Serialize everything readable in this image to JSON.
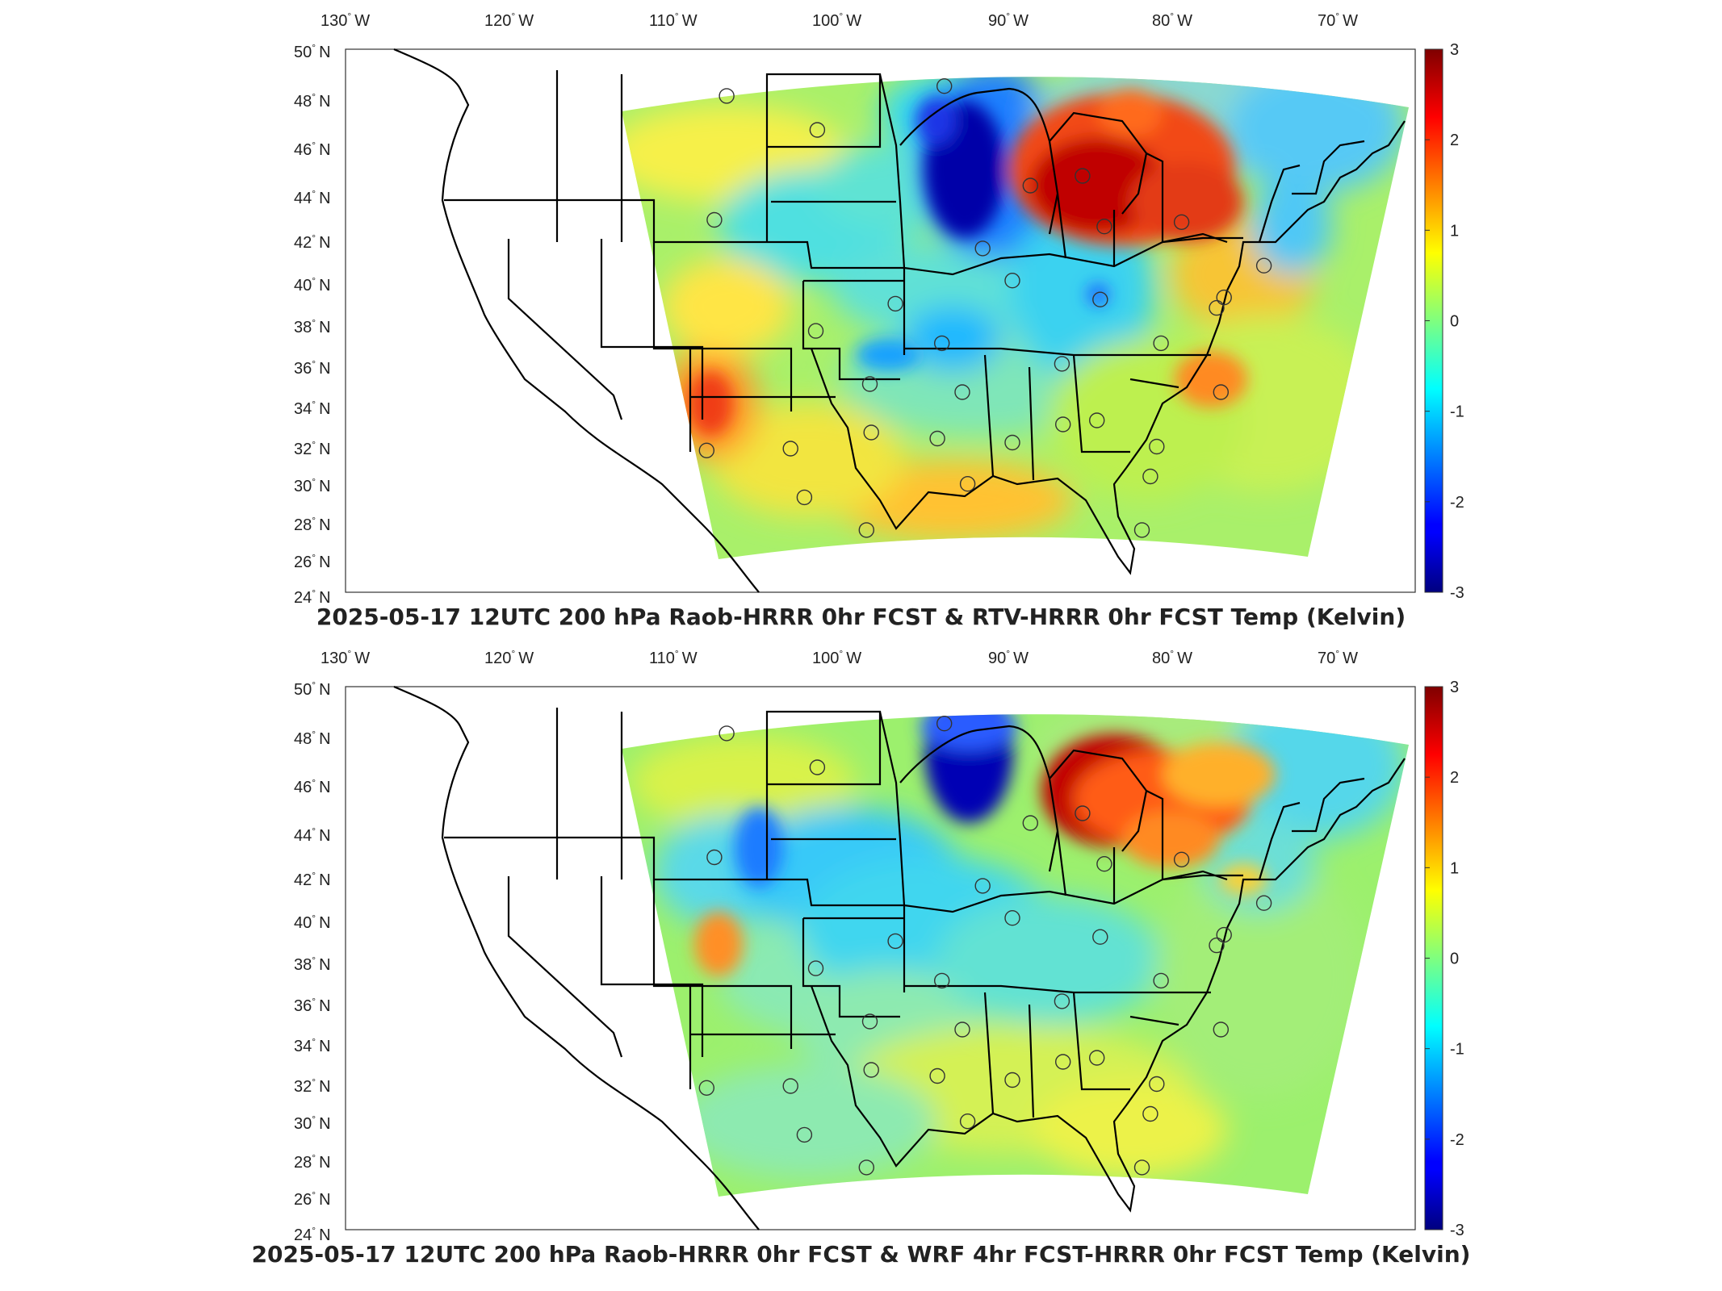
{
  "panels": [
    {
      "title": "2025-05-17 12UTC 200 hPa Raob-HRRR 0hr FCST & RTV-HRRR 0hr FCST Temp (Kelvin)"
    },
    {
      "title": "2025-05-17 12UTC 200 hPa Raob-HRRR 0hr FCST & WRF 4hr FCST-HRRR 0hr FCST Temp (Kelvin)"
    }
  ],
  "lon_ticks": [
    {
      "label": "130",
      "hemi": "W",
      "lon": -130
    },
    {
      "label": "120",
      "hemi": "W",
      "lon": -120
    },
    {
      "label": "110",
      "hemi": "W",
      "lon": -110
    },
    {
      "label": "100",
      "hemi": "W",
      "lon": -100
    },
    {
      "label": "90",
      "hemi": "W",
      "lon": -90
    },
    {
      "label": "80",
      "hemi": "W",
      "lon": -80
    },
    {
      "label": "70",
      "hemi": "W",
      "lon": -70
    }
  ],
  "lat_ticks": [
    {
      "label": "50",
      "hemi": "N",
      "lat": 50
    },
    {
      "label": "48",
      "hemi": "N",
      "lat": 48
    },
    {
      "label": "46",
      "hemi": "N",
      "lat": 46
    },
    {
      "label": "44",
      "hemi": "N",
      "lat": 44
    },
    {
      "label": "42",
      "hemi": "N",
      "lat": 42
    },
    {
      "label": "40",
      "hemi": "N",
      "lat": 40
    },
    {
      "label": "38",
      "hemi": "N",
      "lat": 38
    },
    {
      "label": "36",
      "hemi": "N",
      "lat": 36
    },
    {
      "label": "34",
      "hemi": "N",
      "lat": 34
    },
    {
      "label": "32",
      "hemi": "N",
      "lat": 32
    },
    {
      "label": "30",
      "hemi": "N",
      "lat": 30
    },
    {
      "label": "28",
      "hemi": "N",
      "lat": 28
    },
    {
      "label": "26",
      "hemi": "N",
      "lat": 26
    },
    {
      "label": "24",
      "hemi": "N",
      "lat": 24
    }
  ],
  "colorbar": {
    "ticks": [
      "3",
      "2",
      "1",
      "0",
      "-1",
      "-2",
      "-3"
    ],
    "range": [
      -3,
      3
    ],
    "colormap": "jet"
  },
  "stations": [
    {
      "lon": -106.6,
      "lat": 48.2
    },
    {
      "lon": -100.7,
      "lat": 46.8
    },
    {
      "lon": -93.1,
      "lat": 48.6
    },
    {
      "lon": -107.0,
      "lat": 43.0
    },
    {
      "lon": -88.0,
      "lat": 44.5
    },
    {
      "lon": -84.7,
      "lat": 44.9
    },
    {
      "lon": -83.5,
      "lat": 42.7
    },
    {
      "lon": -78.7,
      "lat": 42.9
    },
    {
      "lon": -91.0,
      "lat": 41.7
    },
    {
      "lon": -89.3,
      "lat": 40.2
    },
    {
      "lon": -96.0,
      "lat": 39.1
    },
    {
      "lon": -100.5,
      "lat": 37.8
    },
    {
      "lon": -84.0,
      "lat": 39.3
    },
    {
      "lon": -93.4,
      "lat": 37.2
    },
    {
      "lon": -80.5,
      "lat": 37.2
    },
    {
      "lon": -77.0,
      "lat": 38.9
    },
    {
      "lon": -76.5,
      "lat": 39.4
    },
    {
      "lon": -86.5,
      "lat": 36.2
    },
    {
      "lon": -97.4,
      "lat": 35.2
    },
    {
      "lon": -92.3,
      "lat": 34.8
    },
    {
      "lon": -77.2,
      "lat": 34.8
    },
    {
      "lon": -84.6,
      "lat": 33.4
    },
    {
      "lon": -86.6,
      "lat": 33.2
    },
    {
      "lon": -97.3,
      "lat": 32.8
    },
    {
      "lon": -101.8,
      "lat": 32.0
    },
    {
      "lon": -93.7,
      "lat": 32.5
    },
    {
      "lon": -89.6,
      "lat": 32.3
    },
    {
      "lon": -106.7,
      "lat": 31.9
    },
    {
      "lon": -81.2,
      "lat": 32.1
    },
    {
      "lon": -92.1,
      "lat": 30.1
    },
    {
      "lon": -81.7,
      "lat": 30.5
    },
    {
      "lon": -100.9,
      "lat": 29.4
    },
    {
      "lon": -97.5,
      "lat": 27.7
    },
    {
      "lon": -82.4,
      "lat": 27.7
    },
    {
      "lon": -73.9,
      "lat": 40.9
    }
  ]
}
